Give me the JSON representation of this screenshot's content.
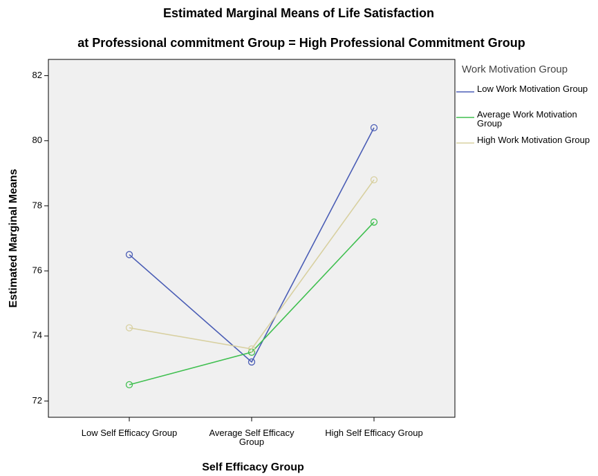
{
  "chart_data": {
    "type": "line",
    "title": "Estimated Marginal Means of Life Satisfaction",
    "subtitle": "at Professional commitment Group = High Professional Commitment Group",
    "x_label": "Self Efficacy Group",
    "y_label": "Estimated Marginal Means",
    "categories": [
      "Low Self Efficacy Group",
      "Average Self Efficacy Group",
      "High Self Efficacy Group"
    ],
    "legend_title": "Work Motivation Group",
    "series": [
      {
        "name": "Low Work Motivation Group",
        "color": "#4a5db5",
        "values": [
          76.5,
          73.2,
          80.4
        ]
      },
      {
        "name": "Average Work Motivation Group",
        "color": "#3fbf4f",
        "values": [
          72.5,
          73.5,
          77.5
        ]
      },
      {
        "name": "High Work Motivation Group",
        "color": "#d8d0a0",
        "values": [
          74.25,
          73.6,
          78.8
        ]
      }
    ],
    "ylim": [
      71.5,
      82.5
    ],
    "yticks": [
      72,
      74,
      76,
      78,
      80,
      82
    ],
    "grid": false,
    "legend": "right"
  }
}
